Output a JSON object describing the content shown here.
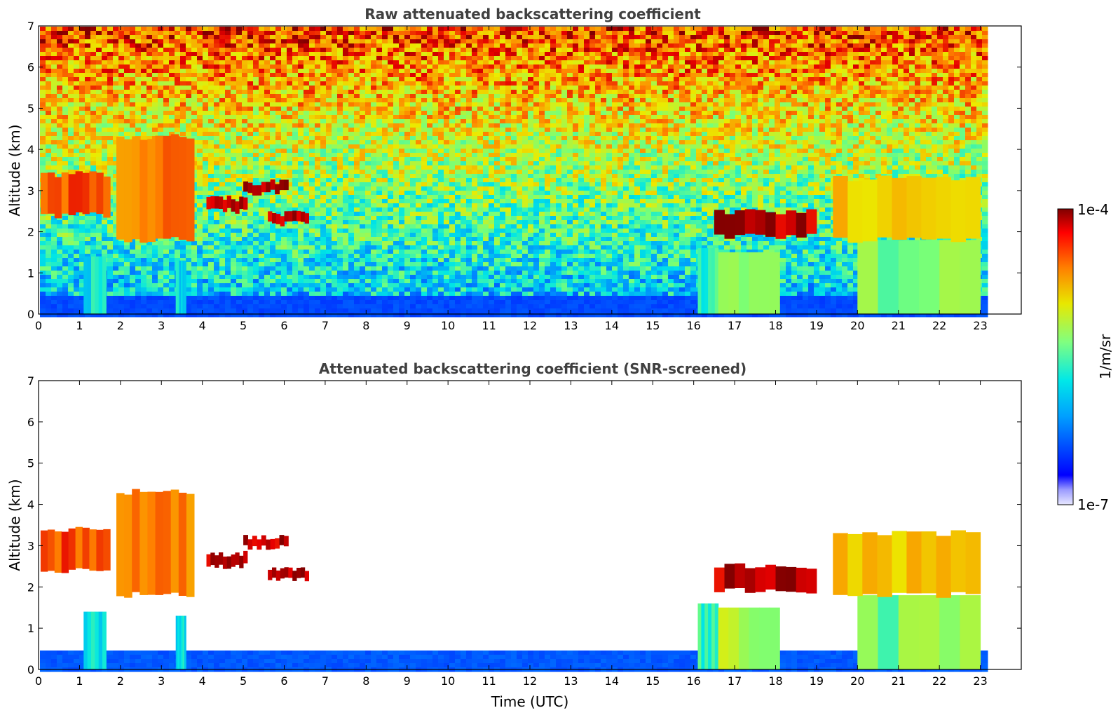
{
  "figure": {
    "colorbar": {
      "label": "1/m/sr",
      "max_label": "1e-4",
      "min_label": "1e-7",
      "scale": "log",
      "range": [
        1e-07,
        0.0001
      ],
      "colormap": "jet"
    }
  },
  "chart_data": [
    {
      "type": "heatmap",
      "title": "Raw attenuated backscattering coefficient",
      "xlabel": "",
      "ylabel": "Altitude (km)",
      "xlim": [
        0,
        24
      ],
      "ylim": [
        0,
        7
      ],
      "xticks": [
        "0",
        "1",
        "2",
        "3",
        "4",
        "5",
        "6",
        "7",
        "8",
        "9",
        "10",
        "11",
        "12",
        "13",
        "14",
        "15",
        "16",
        "17",
        "18",
        "19",
        "20",
        "21",
        "22",
        "23"
      ],
      "yticks": [
        "0",
        "1",
        "2",
        "3",
        "4",
        "5",
        "6",
        "7"
      ],
      "data_end_hour": 23.05,
      "screened": false,
      "layers": [
        {
          "x0": 0.05,
          "x1": 1.75,
          "z0": 2.4,
          "z1": 3.4,
          "intensity": 0.9
        },
        {
          "x0": 1.9,
          "x1": 3.8,
          "z0": 1.8,
          "z1": 4.3,
          "intensity": 0.85
        },
        {
          "x0": 4.1,
          "x1": 5.1,
          "z0": 2.5,
          "z1": 2.8,
          "intensity": 1.0
        },
        {
          "x0": 5.0,
          "x1": 6.1,
          "z0": 2.95,
          "z1": 3.2,
          "intensity": 1.0
        },
        {
          "x0": 5.6,
          "x1": 6.6,
          "z0": 2.2,
          "z1": 2.45,
          "intensity": 1.0
        },
        {
          "x0": 16.5,
          "x1": 19.0,
          "z0": 1.9,
          "z1": 2.5,
          "intensity": 1.0
        },
        {
          "x0": 19.4,
          "x1": 23.0,
          "z0": 1.8,
          "z1": 3.3,
          "intensity": 0.75
        }
      ],
      "columns": [
        {
          "x0": 1.1,
          "x1": 1.65,
          "z1": 1.4,
          "intensity": 0.35
        },
        {
          "x0": 3.35,
          "x1": 3.6,
          "z1": 1.3,
          "intensity": 0.35
        },
        {
          "x0": 16.1,
          "x1": 16.6,
          "z1": 1.6,
          "intensity": 0.4
        },
        {
          "x0": 16.6,
          "x1": 18.1,
          "z1": 1.5,
          "intensity": 0.55
        },
        {
          "x0": 20.0,
          "x1": 23.0,
          "z1": 1.8,
          "intensity": 0.5
        }
      ],
      "surface_layer_top_km": 0.5
    },
    {
      "type": "heatmap",
      "title": "Attenuated backscattering coefficient (SNR-screened)",
      "xlabel": "Time (UTC)",
      "ylabel": "Altitude (km)",
      "xlim": [
        0,
        24
      ],
      "ylim": [
        0,
        7
      ],
      "xticks": [
        "0",
        "1",
        "2",
        "3",
        "4",
        "5",
        "6",
        "7",
        "8",
        "9",
        "10",
        "11",
        "12",
        "13",
        "14",
        "15",
        "16",
        "17",
        "18",
        "19",
        "20",
        "21",
        "22",
        "23"
      ],
      "yticks": [
        "0",
        "1",
        "2",
        "3",
        "4",
        "5",
        "6",
        "7"
      ],
      "data_end_hour": 23.05,
      "screened": true,
      "layers": [
        {
          "x0": 0.05,
          "x1": 1.75,
          "z0": 2.4,
          "z1": 3.4,
          "intensity": 0.9
        },
        {
          "x0": 1.9,
          "x1": 3.8,
          "z0": 1.8,
          "z1": 4.3,
          "intensity": 0.85
        },
        {
          "x0": 4.1,
          "x1": 5.1,
          "z0": 2.5,
          "z1": 2.8,
          "intensity": 1.0
        },
        {
          "x0": 5.0,
          "x1": 6.1,
          "z0": 2.95,
          "z1": 3.2,
          "intensity": 1.0
        },
        {
          "x0": 5.6,
          "x1": 6.6,
          "z0": 2.2,
          "z1": 2.45,
          "intensity": 1.0
        },
        {
          "x0": 16.5,
          "x1": 19.0,
          "z0": 1.9,
          "z1": 2.5,
          "intensity": 1.0
        },
        {
          "x0": 19.4,
          "x1": 23.0,
          "z0": 1.8,
          "z1": 3.3,
          "intensity": 0.75
        }
      ],
      "columns": [
        {
          "x0": 1.1,
          "x1": 1.65,
          "z1": 1.4,
          "intensity": 0.35
        },
        {
          "x0": 3.35,
          "x1": 3.6,
          "z1": 1.3,
          "intensity": 0.35
        },
        {
          "x0": 16.1,
          "x1": 16.6,
          "z1": 1.6,
          "intensity": 0.4
        },
        {
          "x0": 16.6,
          "x1": 18.1,
          "z1": 1.5,
          "intensity": 0.55
        },
        {
          "x0": 20.0,
          "x1": 23.0,
          "z1": 1.8,
          "intensity": 0.5
        }
      ],
      "surface_layer_top_km": 0.5
    }
  ]
}
